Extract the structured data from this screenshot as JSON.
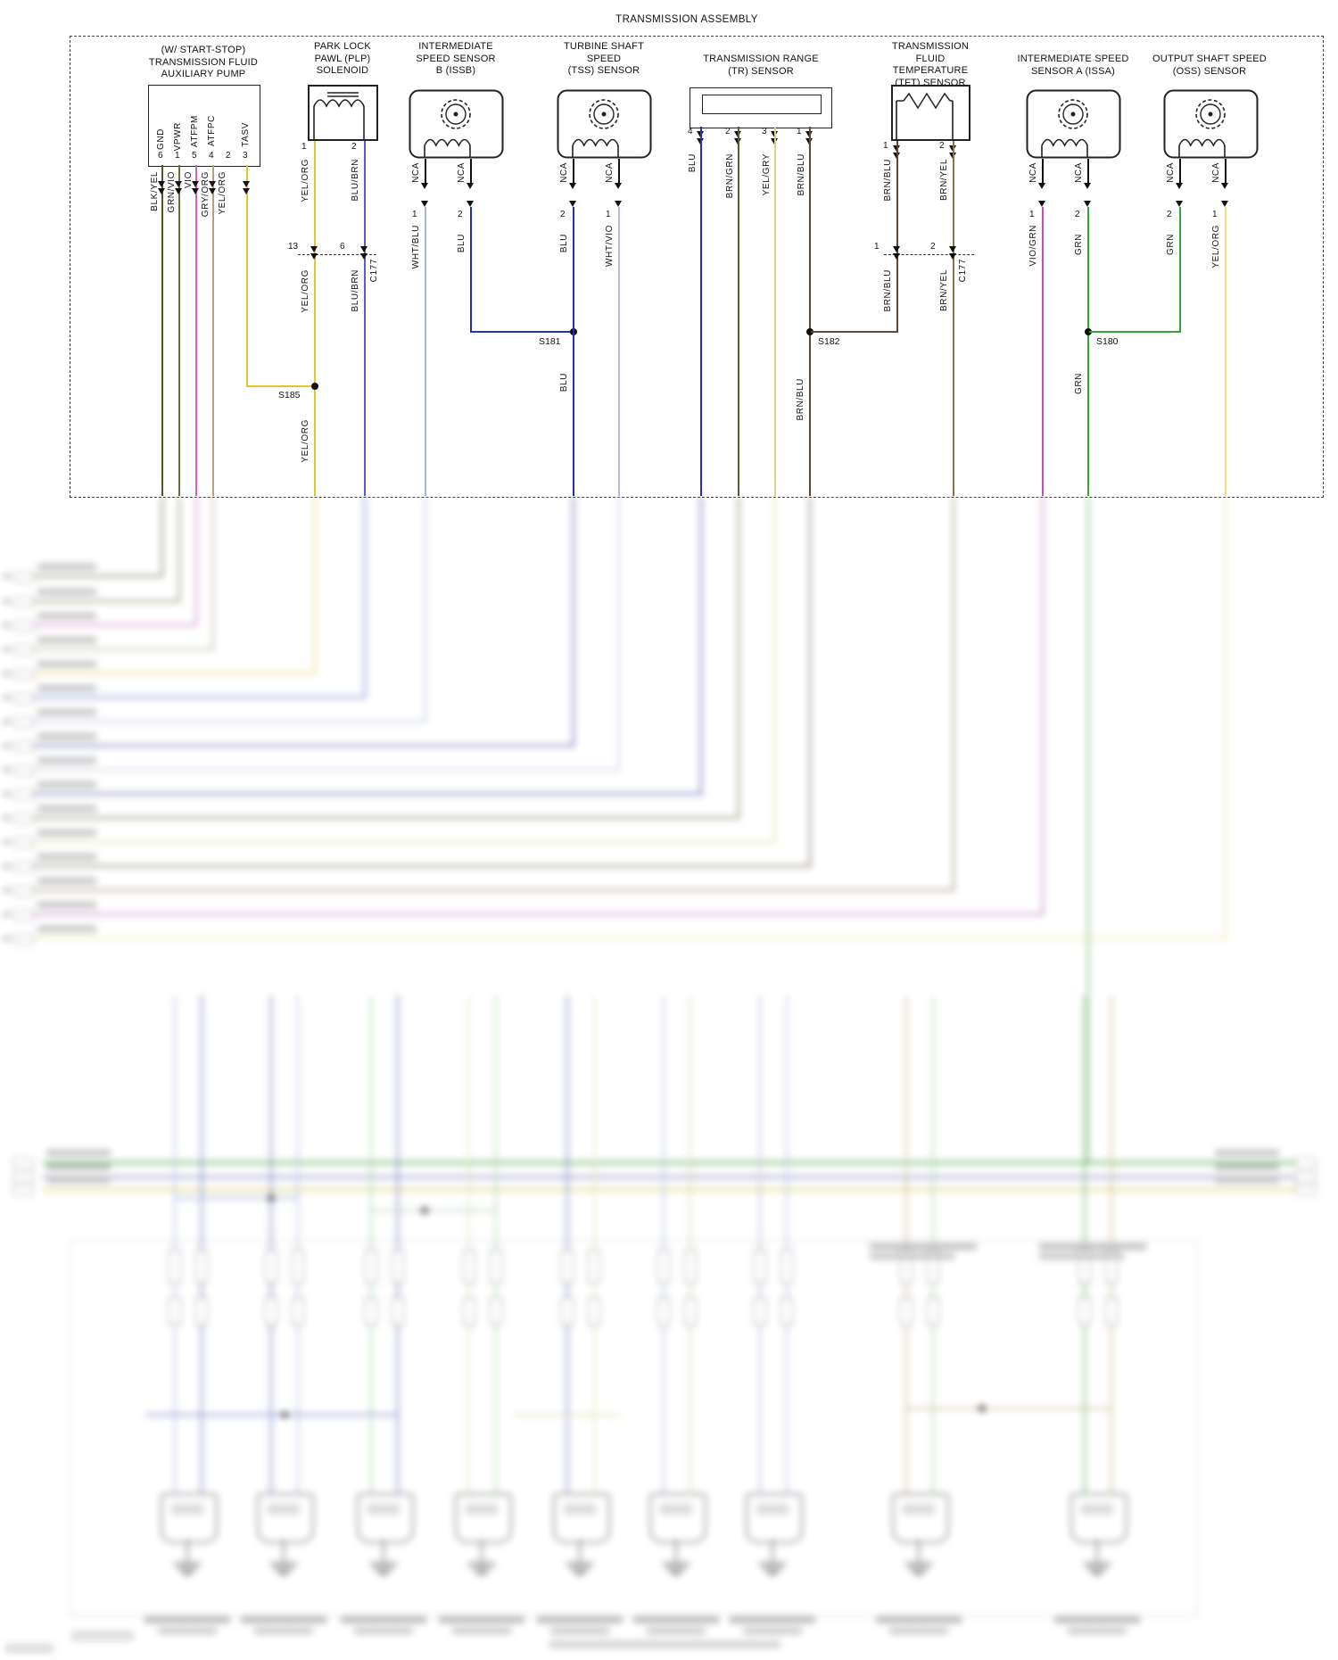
{
  "assembly": {
    "title": "TRANSMISSION ASSEMBLY"
  },
  "colors": {
    "BLK_YEL": "#55551f",
    "GRN_VIO": "#6c6f3c",
    "VIO": "#cf5fcf",
    "GRY_ORG": "#b3a07f",
    "YEL_ORG": "#e3c62e",
    "BLU_BRN": "#4d62cc",
    "WHT_BLU": "#a6b4e6",
    "BLU": "#2633a8",
    "WHT_VIO": "#c6b2e2",
    "BRN_GRN": "#5e592d",
    "YEL_GRY": "#dcd28d",
    "BRN_BLU": "#5a4a33",
    "BRN_YEL": "#8a7440",
    "VIO_GRN": "#c44fb8",
    "GRN": "#3aa33a",
    "YEL_ORG_PALE": "#e7dc82"
  },
  "pump": {
    "title1": "(W/ START-STOP)",
    "title2": "TRANSMISSION FLUID",
    "title3": "AUXILIARY PUMP",
    "sig1": "GND",
    "sig2": "VPWR",
    "sig3": "ATFPM",
    "sig4": "ATFPC",
    "sig5": "TASV",
    "pin1": "6",
    "pin2": "1",
    "pin3": "5",
    "pin4": "4",
    "pin5": "2",
    "pin6": "3",
    "wire1": "BLK/YEL",
    "wire2": "GRN/VIO",
    "wire3": "VIO",
    "wire4": "GRY/ORG",
    "wire5": "YEL/ORG"
  },
  "plp": {
    "title1": "PARK LOCK",
    "title2": "PAWL (PLP)",
    "title3": "SOLENOID",
    "pin1": "1",
    "pin2": "2",
    "wire1": "YEL/ORG",
    "wire2": "BLU/BRN",
    "cpin1": "13",
    "cpin2": "6",
    "connector": "C177"
  },
  "issb": {
    "title1": "INTERMEDIATE",
    "title2": "SPEED SENSOR",
    "title3": "B (ISSB)",
    "nca": "NCA",
    "pin1": "1",
    "pin2": "2",
    "wire1": "WHT/BLU",
    "wire2": "BLU"
  },
  "tss": {
    "title1": "TURBINE SHAFT",
    "title2": "SPEED",
    "title3": "(TSS) SENSOR",
    "nca": "NCA",
    "pin1": "2",
    "pin2": "1",
    "wire1": "BLU",
    "wire2": "WHT/VIO"
  },
  "tr": {
    "title1": "TRANSMISSION RANGE",
    "title2": "(TR) SENSOR",
    "pin1": "4",
    "pin2": "2",
    "pin3": "3",
    "pin4": "1",
    "wire1": "BLU",
    "wire2": "BRN/GRN",
    "wire3": "YEL/GRY",
    "wire4": "BRN/BLU"
  },
  "tft": {
    "title1": "TRANSMISSION",
    "title2": "FLUID TEMPERATURE",
    "title3": "(TFT) SENSOR",
    "pin1": "1",
    "pin2": "2",
    "wire1": "BRN/BLU",
    "wire2": "BRN/YEL",
    "cpin1": "1",
    "cpin2": "2",
    "connector": "C177"
  },
  "issa": {
    "title1": "INTERMEDIATE SPEED",
    "title2": "SENSOR A (ISSA)",
    "nca": "NCA",
    "pin1": "1",
    "pin2": "2",
    "wire1": "VIO/GRN",
    "wire2": "GRN"
  },
  "oss": {
    "title1": "OUTPUT SHAFT SPEED",
    "title2": "(OSS) SENSOR",
    "nca": "NCA",
    "pin1": "2",
    "pin2": "1",
    "wire1": "GRN",
    "wire2": "YEL/ORG"
  },
  "splices": {
    "s185": "S185",
    "s181": "S181",
    "s182": "S182",
    "s180": "S180"
  }
}
